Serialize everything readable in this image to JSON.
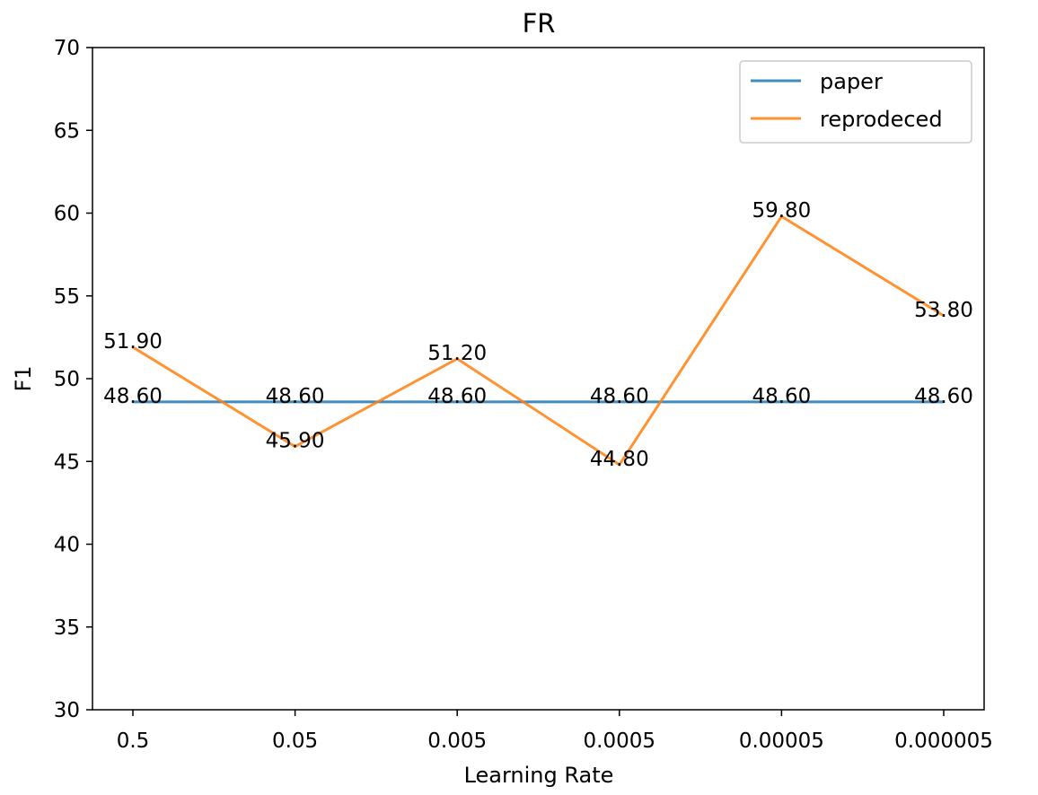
{
  "chart_data": {
    "type": "line",
    "title": "FR",
    "xlabel": "Learning Rate",
    "ylabel": "F1",
    "categories": [
      "0.5",
      "0.05",
      "0.005",
      "0.0005",
      "0.00005",
      "0.000005"
    ],
    "ylim": [
      30,
      70
    ],
    "yticks": [
      30,
      35,
      40,
      45,
      50,
      55,
      60,
      65,
      70
    ],
    "grid": false,
    "legend_position": "top-right",
    "series": [
      {
        "name": "paper",
        "color": "#1f77b4",
        "values": [
          48.6,
          48.6,
          48.6,
          48.6,
          48.6,
          48.6
        ],
        "labels": [
          "48.60",
          "48.60",
          "48.60",
          "48.60",
          "48.60",
          "48.60"
        ]
      },
      {
        "name": "reprodeced",
        "color": "#ff7f0e",
        "values": [
          51.9,
          45.9,
          51.2,
          44.8,
          59.8,
          53.8
        ],
        "labels": [
          "51.90",
          "45.90",
          "51.20",
          "44.80",
          "59.80",
          "53.80"
        ]
      }
    ]
  }
}
